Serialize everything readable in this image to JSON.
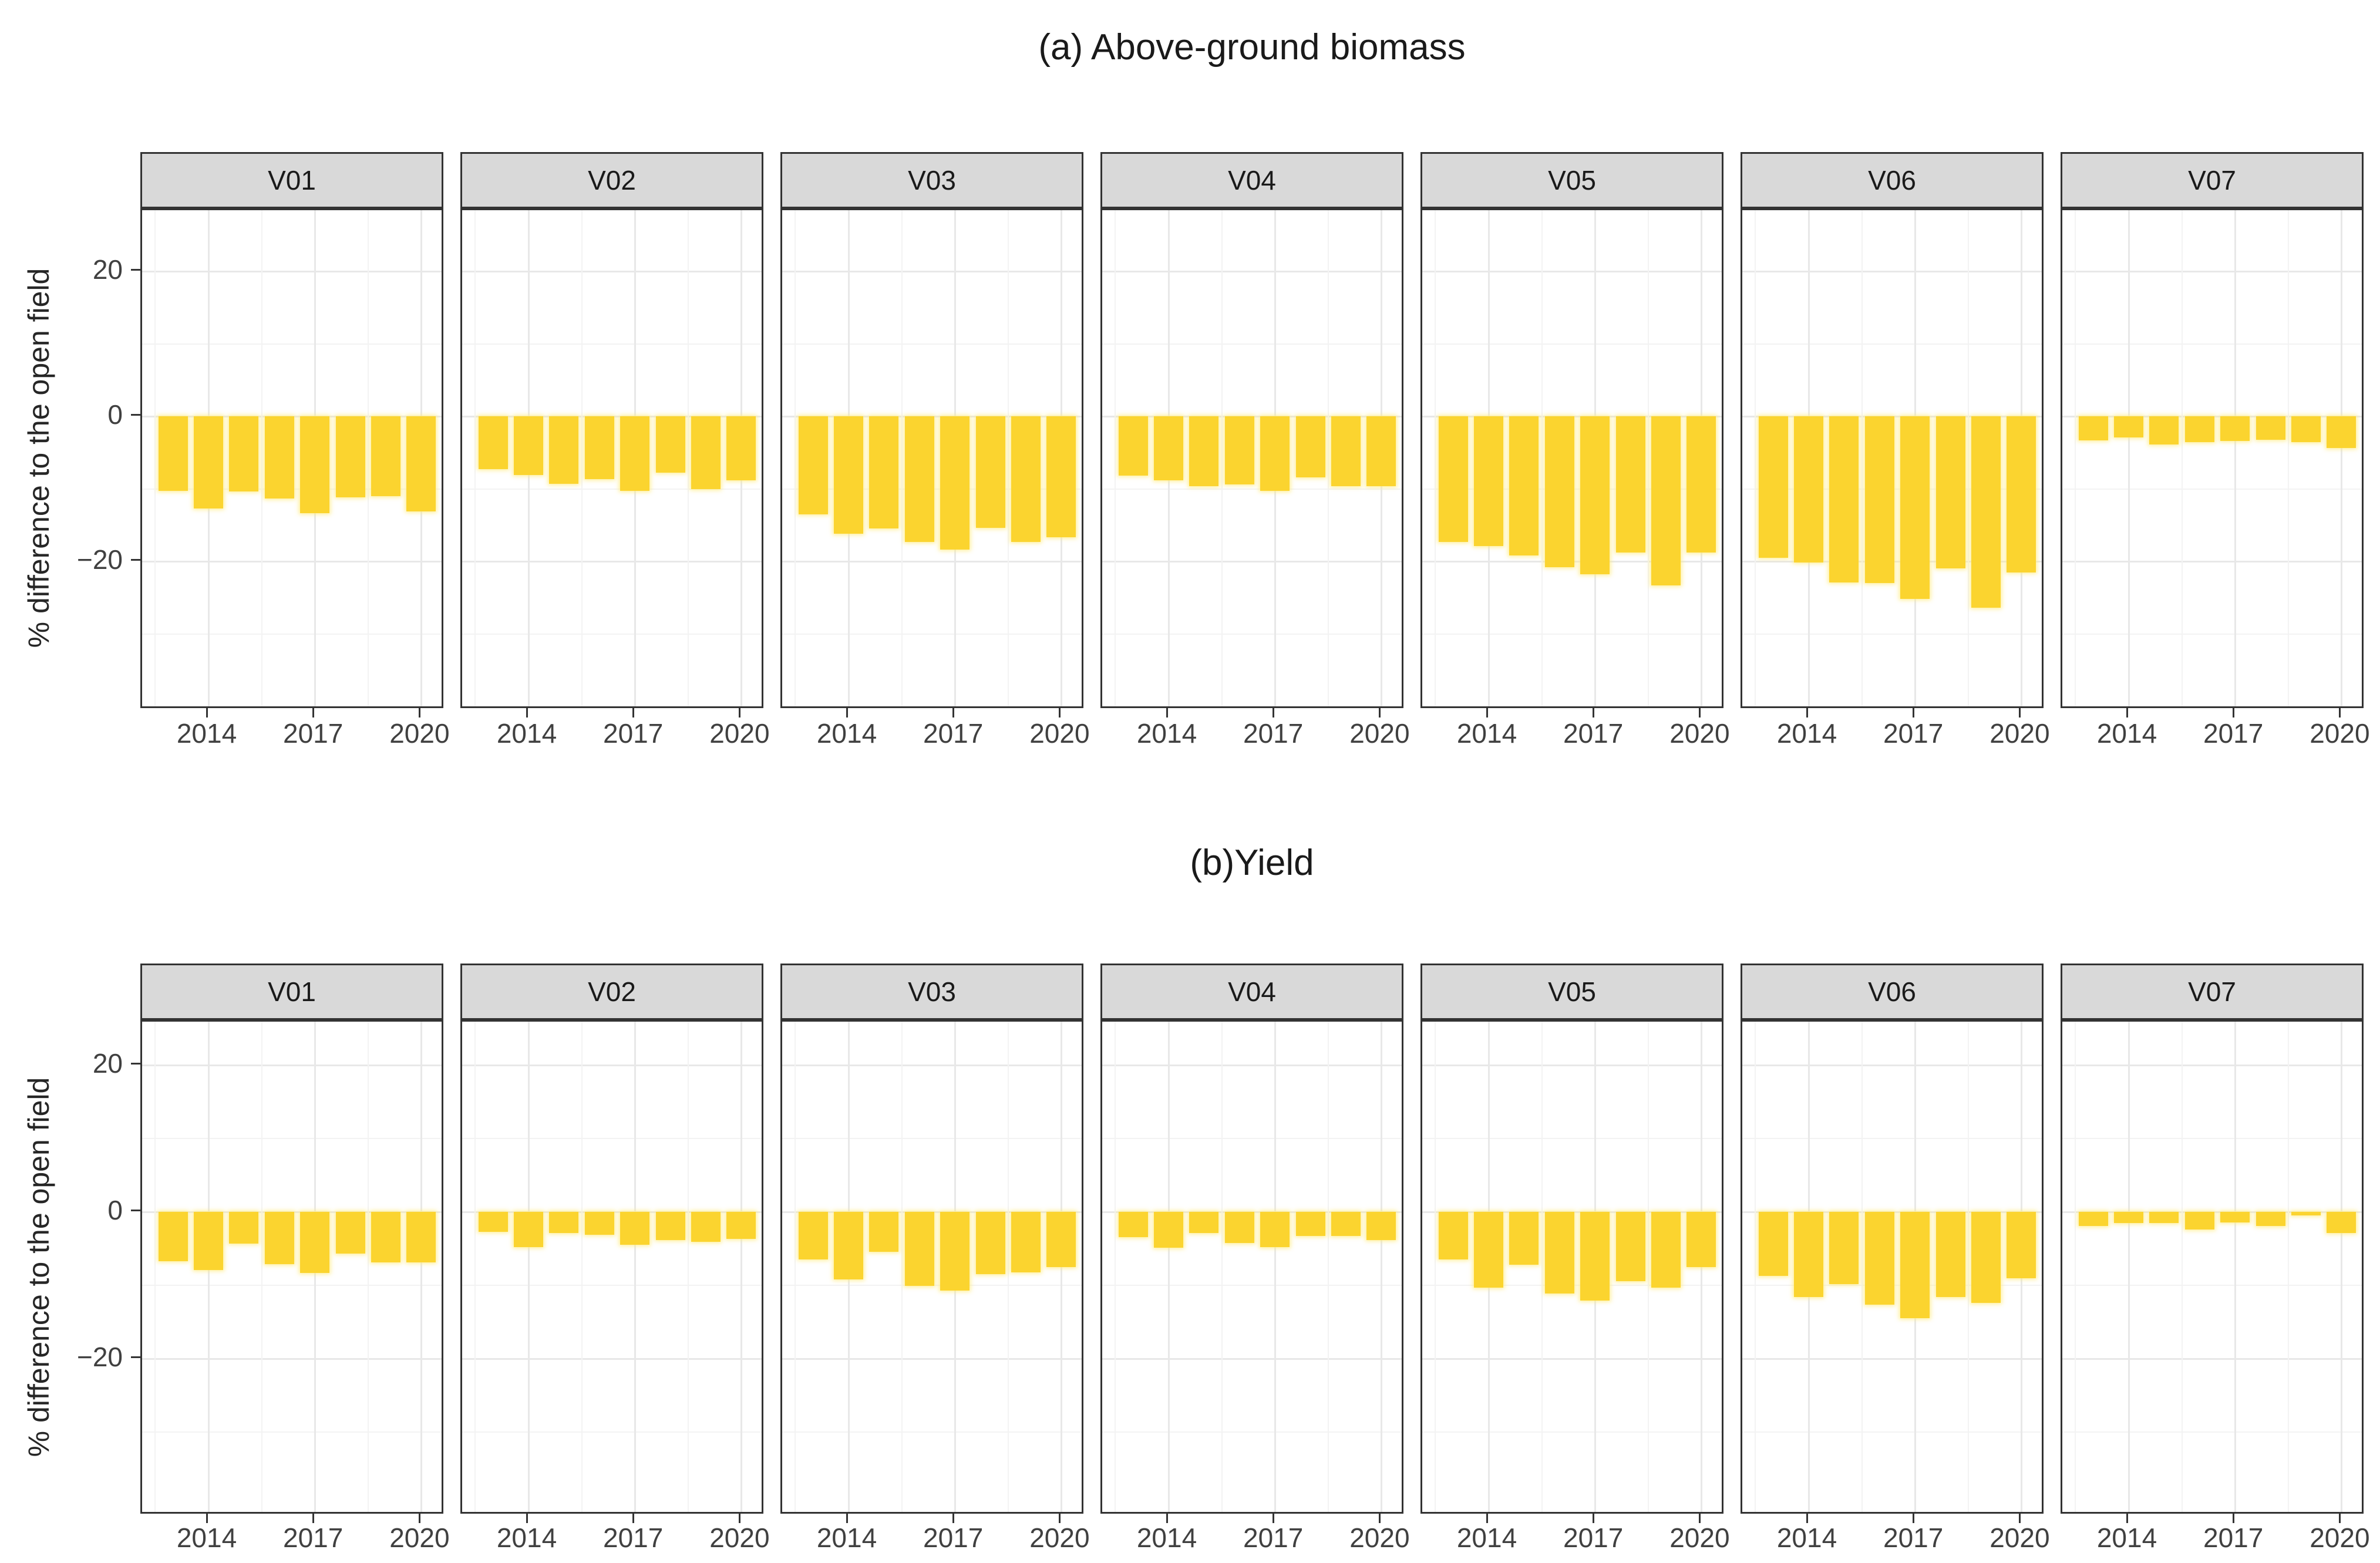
{
  "figure": {
    "background": "#ffffff",
    "bar_color": "#fbd42f",
    "strip_background": "#d9d9d9",
    "panel_border_color": "#333333",
    "axis_text_color": "#404040"
  },
  "chart_data": [
    {
      "type": "bar",
      "title": "(a) Above-ground biomass",
      "ylabel": "% difference to the open field",
      "xlabel": "",
      "categories": [
        2013,
        2014,
        2015,
        2016,
        2017,
        2018,
        2019,
        2020
      ],
      "x_ticks": [
        2014,
        2017,
        2020
      ],
      "x_minor_years": [
        2012.5,
        2015.5,
        2018.5
      ],
      "y_ticks": [
        20,
        0,
        -20
      ],
      "y_minor": [
        10,
        -10,
        -30
      ],
      "ylim": [
        -40.5,
        28.4
      ],
      "grid": true,
      "legend": "none",
      "series": [
        {
          "name": "V01",
          "values": [
            -10.3,
            -12.7,
            -10.4,
            -11.3,
            -13.4,
            -11.2,
            -11.0,
            -13.1
          ]
        },
        {
          "name": "V02",
          "values": [
            -7.3,
            -8.1,
            -9.3,
            -8.7,
            -10.3,
            -7.8,
            -10.0,
            -8.8
          ]
        },
        {
          "name": "V03",
          "values": [
            -13.5,
            -16.2,
            -15.5,
            -17.3,
            -18.4,
            -15.4,
            -17.3,
            -16.7
          ]
        },
        {
          "name": "V04",
          "values": [
            -8.2,
            -8.8,
            -9.6,
            -9.4,
            -10.3,
            -8.4,
            -9.6,
            -9.6
          ]
        },
        {
          "name": "V05",
          "values": [
            -17.3,
            -17.9,
            -19.2,
            -20.8,
            -21.8,
            -18.8,
            -23.3,
            -18.8
          ]
        },
        {
          "name": "V06",
          "values": [
            -19.5,
            -20.2,
            -22.9,
            -23.0,
            -25.2,
            -21.0,
            -26.4,
            -21.5
          ]
        },
        {
          "name": "V07",
          "values": [
            -3.3,
            -2.9,
            -3.9,
            -3.6,
            -3.4,
            -3.2,
            -3.6,
            -4.4
          ]
        }
      ]
    },
    {
      "type": "bar",
      "title": "(b)Yield",
      "ylabel": "% difference to the open field",
      "xlabel": "",
      "categories": [
        2013,
        2014,
        2015,
        2016,
        2017,
        2018,
        2019,
        2020
      ],
      "x_ticks": [
        2014,
        2017,
        2020
      ],
      "x_minor_years": [
        2012.5,
        2015.5,
        2018.5
      ],
      "y_ticks": [
        20,
        0,
        -20
      ],
      "y_minor": [
        10,
        -10,
        -30
      ],
      "ylim": [
        -41.4,
        25.7
      ],
      "grid": true,
      "legend": "none",
      "series": [
        {
          "name": "V01",
          "values": [
            -6.7,
            -7.9,
            -4.3,
            -7.1,
            -8.3,
            -5.7,
            -6.9,
            -6.9
          ]
        },
        {
          "name": "V02",
          "values": [
            -2.7,
            -4.8,
            -2.9,
            -3.1,
            -4.5,
            -3.8,
            -4.1,
            -3.7
          ]
        },
        {
          "name": "V03",
          "values": [
            -6.5,
            -9.2,
            -5.4,
            -10.1,
            -10.7,
            -8.5,
            -8.2,
            -7.5
          ]
        },
        {
          "name": "V04",
          "values": [
            -3.4,
            -4.9,
            -2.9,
            -4.2,
            -4.8,
            -3.3,
            -3.3,
            -3.8
          ]
        },
        {
          "name": "V05",
          "values": [
            -6.5,
            -10.3,
            -7.2,
            -11.1,
            -12.1,
            -9.4,
            -10.3,
            -7.5
          ]
        },
        {
          "name": "V06",
          "values": [
            -8.7,
            -11.6,
            -9.8,
            -12.6,
            -14.5,
            -11.6,
            -12.4,
            -9.0
          ]
        },
        {
          "name": "V07",
          "values": [
            -1.9,
            -1.5,
            -1.5,
            -2.4,
            -1.4,
            -1.9,
            -0.5,
            -2.9
          ]
        }
      ]
    }
  ]
}
